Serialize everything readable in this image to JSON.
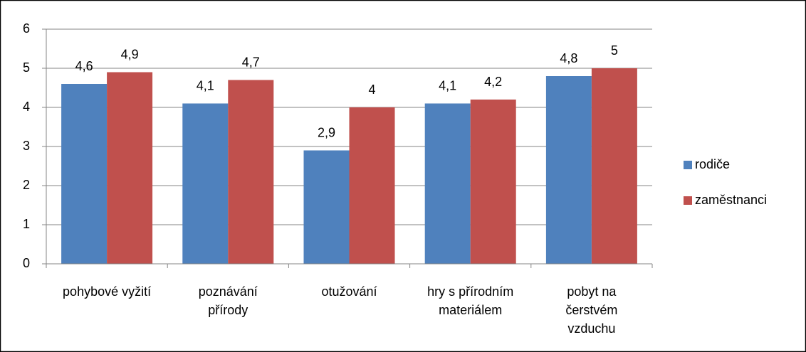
{
  "chart_data": {
    "type": "bar",
    "categories": [
      "pohybové vyžití",
      "poznávání\npřírody",
      "otužování",
      "hry s přírodním\nmateriálem",
      "pobyt na\nčerstvém\nvzduchu"
    ],
    "series": [
      {
        "name": "rodiče",
        "color": "#4f81bd",
        "values": [
          4.6,
          4.1,
          2.9,
          4.1,
          4.8
        ],
        "value_labels": [
          "4,6",
          "4,1",
          "2,9",
          "4,1",
          "4,8"
        ]
      },
      {
        "name": "zaměstnanci",
        "color": "#c0504d",
        "values": [
          4.9,
          4.7,
          4,
          4.2,
          5
        ],
        "value_labels": [
          "4,9",
          "4,7",
          "4",
          "4,2",
          "5"
        ]
      }
    ],
    "ylim": [
      0,
      6
    ],
    "yticks": [
      0,
      1,
      2,
      3,
      4,
      5,
      6
    ],
    "grid": true,
    "legend": "right"
  }
}
